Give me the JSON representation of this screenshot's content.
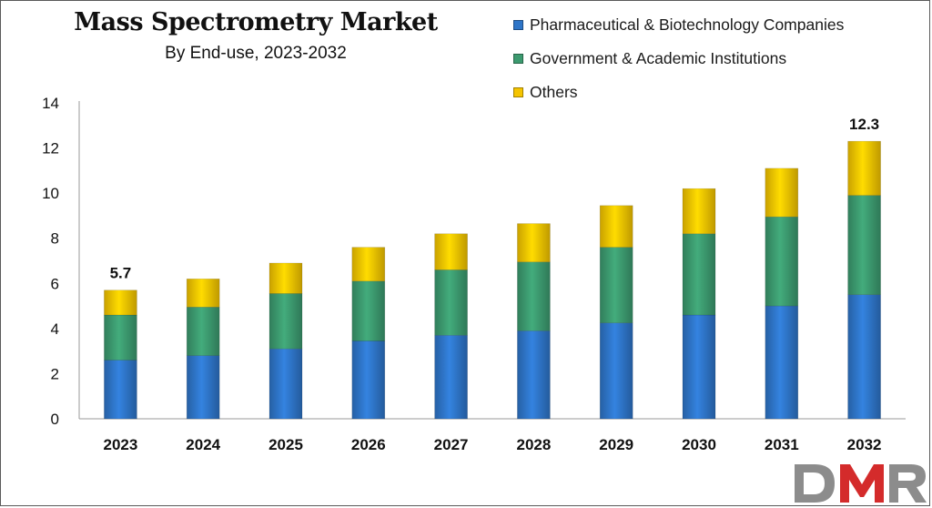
{
  "header": {
    "title": "Mass Spectrometry Market",
    "subtitle": "By End-use, 2023-2032"
  },
  "legend": {
    "items": [
      {
        "label": "Pharmaceutical & Biotechnology Companies",
        "color": "#2E75C8"
      },
      {
        "label": "Government & Academic Institutions",
        "color": "#3C9A6F"
      },
      {
        "label": "Others",
        "color": "#F5C400"
      }
    ]
  },
  "logo": {
    "text": "DMR"
  },
  "chart_data": {
    "type": "bar",
    "stacked": true,
    "title": "Mass Spectrometry Market",
    "subtitle": "By End-use, 2023-2032",
    "categories": [
      "2023",
      "2024",
      "2025",
      "2026",
      "2027",
      "2028",
      "2029",
      "2030",
      "2031",
      "2032"
    ],
    "series": [
      {
        "name": "Pharmaceutical & Biotechnology Companies",
        "color": "#2E75C8",
        "values": [
          2.6,
          2.8,
          3.1,
          3.45,
          3.7,
          3.9,
          4.25,
          4.6,
          5.0,
          5.5
        ]
      },
      {
        "name": "Government & Academic Institutions",
        "color": "#3C9A6F",
        "values": [
          2.0,
          2.15,
          2.45,
          2.65,
          2.9,
          3.05,
          3.35,
          3.6,
          3.95,
          4.4
        ]
      },
      {
        "name": "Others",
        "color": "#F5C400",
        "values": [
          1.1,
          1.25,
          1.35,
          1.5,
          1.6,
          1.7,
          1.85,
          2.0,
          2.15,
          2.4
        ]
      }
    ],
    "totals_labels": {
      "2023": "5.7",
      "2032": "12.3"
    },
    "yticks": [
      "0",
      "2",
      "4",
      "6",
      "8",
      "10",
      "12",
      "14"
    ],
    "ylim": [
      0,
      14
    ],
    "grid": false,
    "legend_position": "top-right"
  }
}
